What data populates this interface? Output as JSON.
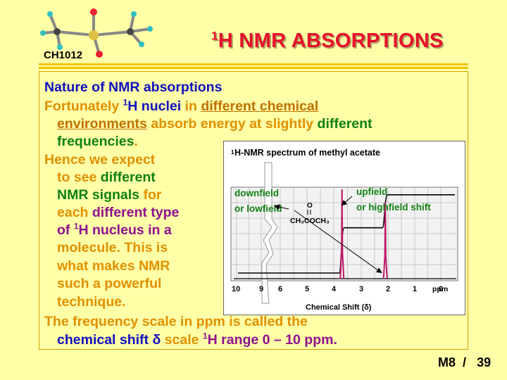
{
  "header": {
    "course_code": "CH1012",
    "title_sup": "1",
    "title_main": "H NMR ABSORPTIONS"
  },
  "body": {
    "l1": "Nature of NMR absorptions",
    "l2a": "Fortunately ",
    "l2b_sup": "1",
    "l2b": "H nuclei",
    "l2c": " in ",
    "l2d": "different chemical",
    "l3a": "environments",
    "l3b": " absorb energy at slightly ",
    "l3c": "different",
    "l4a": "frequencies",
    "l4b": ".",
    "l5": "Hence we expect",
    "l6a": "to see ",
    "l6b": "different",
    "l7a": "NMR signals",
    "l7b": " for",
    "l8a": "each ",
    "l8b": "different type",
    "l9a": "of ",
    "l9b_sup": "1",
    "l9b": "H nucleus in a",
    "l10": "molecule. This is",
    "l11": "what makes NMR",
    "l12": "such a powerful",
    "l13": "technique.",
    "l14": "The frequency scale in ppm  is called the",
    "l15a": "chemical shift ",
    "l15b": "δ",
    "l15c": " scale ",
    "l15d_sup": "1",
    "l15d": "H range 0 – 10 ppm."
  },
  "spectrum": {
    "title_sup": "1",
    "title": "H-NMR spectrum of methyl acetate",
    "label_downfield": "downfield",
    "label_lowfield": "or lowfield",
    "label_upfield": "upfield",
    "label_highfield": "or highfield shift",
    "formula_o": "O",
    "formula": "CH₃COCH₃",
    "xlabel": "Chemical Shift (δ)",
    "ticks": [
      "10",
      "9",
      "6",
      "5",
      "4",
      "3",
      "2",
      "1",
      "0"
    ],
    "unit": "ppm"
  },
  "chart_data": {
    "type": "line",
    "title": "H-NMR spectrum of methyl acetate",
    "xlabel": "Chemical Shift (δ)",
    "x_unit": "ppm",
    "x_axis_reversed": true,
    "xlim": [
      10,
      0
    ],
    "axis_break_between": [
      9,
      6
    ],
    "tick_labels": [
      "10",
      "9",
      "6",
      "5",
      "4",
      "3",
      "2",
      "1",
      "0"
    ],
    "peaks": [
      {
        "shift_ppm": 3.7,
        "relative_height": 1.0
      },
      {
        "shift_ppm": 2.1,
        "relative_height": 0.85
      }
    ],
    "integral_steps": [
      {
        "shift_ppm": 3.7,
        "level_before": 0.0,
        "level_after": 0.55
      },
      {
        "shift_ppm": 2.1,
        "level_before": 0.55,
        "level_after": 0.95
      }
    ],
    "colors": {
      "peaks": "#c0186a",
      "baseline": "#000000",
      "label_text": "#108010"
    }
  },
  "footer": {
    "slide_label": "M8",
    "separator": "/",
    "page": "39"
  }
}
